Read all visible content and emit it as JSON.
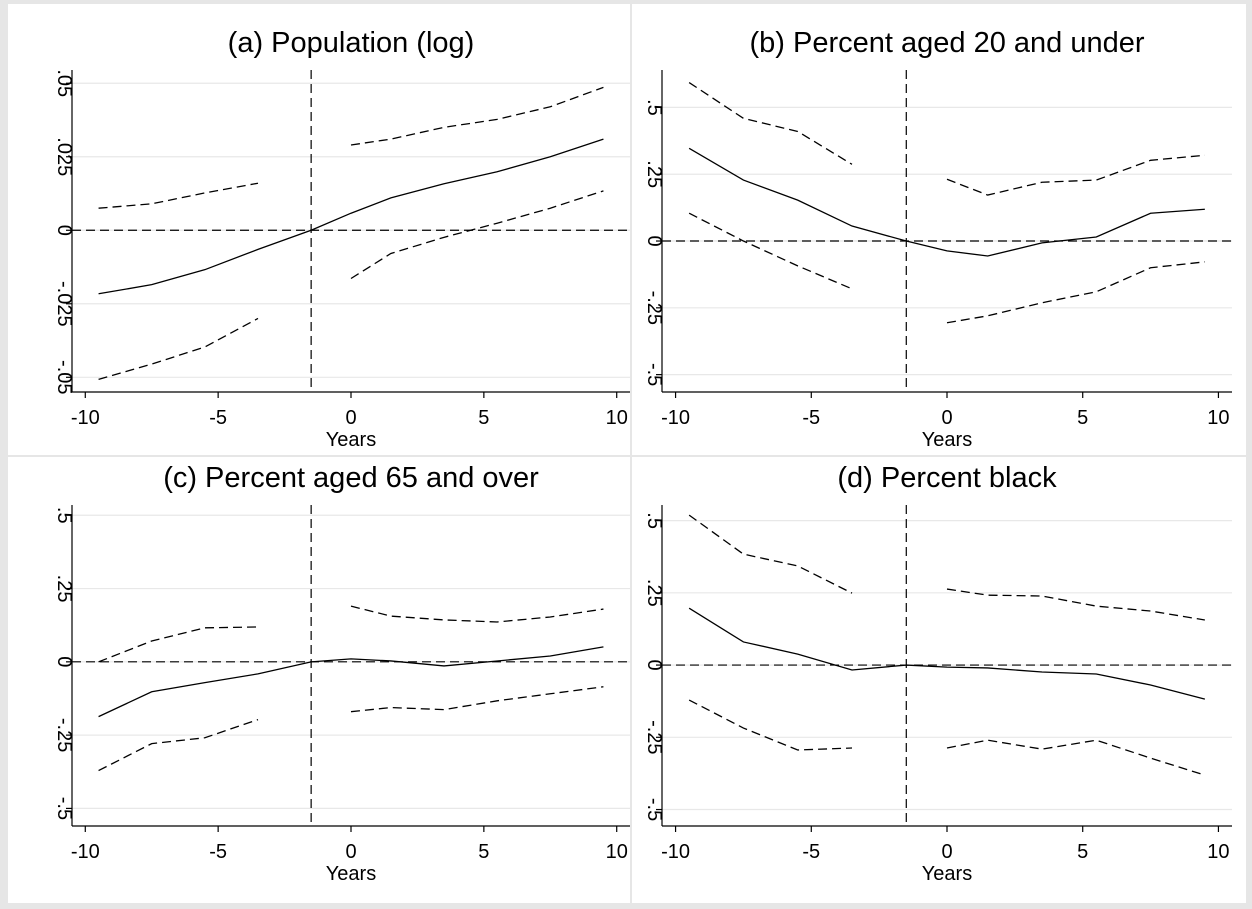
{
  "chart_data": [
    {
      "type": "line",
      "title": "(a) Population (log)",
      "xlabel": "Years",
      "x": [
        -9.5,
        -7.5,
        -5.5,
        -3.5,
        -1.5,
        0,
        1.5,
        3.5,
        5.5,
        7.5,
        9.5
      ],
      "series": [
        {
          "color": "#000000",
          "style": "solid",
          "values": [
            -0.0216,
            -0.0185,
            -0.0134,
            -0.0065,
            0,
            0.0058,
            0.011,
            0.0158,
            0.0199,
            0.025,
            0.031
          ]
        },
        {
          "color": "#000000",
          "style": "dashed",
          "values": [
            0.0075,
            0.009,
            0.0127,
            0.016,
            null,
            0.029,
            0.031,
            0.035,
            0.0377,
            0.042,
            0.0486
          ]
        },
        {
          "color": "#000000",
          "style": "dashed",
          "values": [
            -0.0507,
            -0.0455,
            -0.0397,
            -0.03,
            null,
            -0.0164,
            -0.0079,
            -0.0024,
            0.0024,
            0.0075,
            0.0134
          ]
        }
      ],
      "xlim": [
        -10.5,
        10.5
      ],
      "xticks": [
        -10,
        -5,
        0,
        5,
        10
      ],
      "ylim": [
        -0.055,
        0.0545
      ],
      "yticks": [
        {
          "value": -0.05,
          "label": "-.05"
        },
        {
          "value": -0.025,
          "label": "-.025"
        },
        0,
        {
          "value": 0.025,
          "label": ".025"
        },
        {
          "value": 0.05,
          "label": ".05"
        }
      ],
      "hline": 0,
      "vline": -1.5,
      "grid": true
    },
    {
      "type": "line",
      "title": "(b) Percent aged 20 and under",
      "xlabel": "Years",
      "x": [
        -9.5,
        -7.5,
        -5.5,
        -3.5,
        -1.5,
        0,
        1.5,
        3.5,
        5.5,
        7.5,
        9.5
      ],
      "series": [
        {
          "color": "#000000",
          "style": "solid",
          "values": [
            0.347,
            0.228,
            0.153,
            0.056,
            0,
            -0.037,
            -0.056,
            -0.007,
            0.015,
            0.104,
            0.119
          ]
        },
        {
          "color": "#000000",
          "style": "dashed",
          "values": [
            0.593,
            0.459,
            0.41,
            0.287,
            null,
            0.231,
            0.172,
            0.22,
            0.228,
            0.302,
            0.321
          ]
        },
        {
          "color": "#000000",
          "style": "dashed",
          "values": [
            0.104,
            0,
            -0.093,
            -0.179,
            null,
            -0.306,
            -0.28,
            -0.231,
            -0.19,
            -0.1,
            -0.078
          ]
        }
      ],
      "xlim": [
        -10.5,
        10.5
      ],
      "xticks": [
        -10,
        -5,
        0,
        5,
        10
      ],
      "ylim": [
        -0.565,
        0.64
      ],
      "yticks": [
        {
          "value": -0.5,
          "label": "-.5"
        },
        {
          "value": -0.25,
          "label": "-.25"
        },
        0,
        {
          "value": 0.25,
          "label": ".25"
        },
        {
          "value": 0.5,
          "label": ".5"
        }
      ],
      "hline": 0,
      "vline": -1.5,
      "grid": true
    },
    {
      "type": "line",
      "title": "(c) Percent aged 65 and over",
      "xlabel": "Years",
      "x": [
        -9.5,
        -7.5,
        -5.5,
        -3.5,
        -1.5,
        0,
        1.5,
        3.5,
        5.5,
        7.5,
        9.5
      ],
      "series": [
        {
          "color": "#000000",
          "style": "solid",
          "values": [
            -0.187,
            -0.102,
            -0.071,
            -0.041,
            0,
            0.01,
            0.003,
            -0.014,
            0.003,
            0.02,
            0.051
          ]
        },
        {
          "color": "#000000",
          "style": "dashed",
          "values": [
            0,
            0.071,
            0.116,
            0.119,
            null,
            0.19,
            0.156,
            0.143,
            0.136,
            0.153,
            0.18
          ]
        },
        {
          "color": "#000000",
          "style": "dashed",
          "values": [
            -0.371,
            -0.279,
            -0.259,
            -0.197,
            null,
            -0.17,
            -0.156,
            -0.163,
            -0.133,
            -0.109,
            -0.085
          ]
        }
      ],
      "xlim": [
        -10.5,
        10.5
      ],
      "xticks": [
        -10,
        -5,
        0,
        5,
        10
      ],
      "ylim": [
        -0.56,
        0.535
      ],
      "yticks": [
        {
          "value": -0.5,
          "label": "-.5"
        },
        {
          "value": -0.25,
          "label": "-.25"
        },
        0,
        {
          "value": 0.25,
          "label": ".25"
        },
        {
          "value": 0.5,
          "label": ".5"
        }
      ],
      "hline": 0,
      "vline": -1.5,
      "grid": true
    },
    {
      "type": "line",
      "title": "(d) Percent black",
      "xlabel": "Years",
      "x": [
        -9.5,
        -7.5,
        -5.5,
        -3.5,
        -1.5,
        0,
        1.5,
        3.5,
        5.5,
        7.5,
        9.5
      ],
      "series": [
        {
          "color": "#000000",
          "style": "solid",
          "values": [
            0.197,
            0.08,
            0.038,
            -0.017,
            0,
            -0.007,
            -0.01,
            -0.024,
            -0.031,
            -0.069,
            -0.118
          ]
        },
        {
          "color": "#000000",
          "style": "dashed",
          "values": [
            0.519,
            0.384,
            0.343,
            0.249,
            null,
            0.263,
            0.242,
            0.239,
            0.204,
            0.187,
            0.156
          ]
        },
        {
          "color": "#000000",
          "style": "dashed",
          "values": [
            -0.121,
            -0.218,
            -0.294,
            -0.287,
            null,
            -0.287,
            -0.26,
            -0.291,
            -0.26,
            -0.322,
            -0.381
          ]
        }
      ],
      "xlim": [
        -10.5,
        10.5
      ],
      "xticks": [
        -10,
        -5,
        0,
        5,
        10
      ],
      "ylim": [
        -0.557,
        0.554
      ],
      "yticks": [
        {
          "value": -0.5,
          "label": "-.5"
        },
        {
          "value": -0.25,
          "label": "-.25"
        },
        0,
        {
          "value": 0.25,
          "label": ".25"
        },
        {
          "value": 0.5,
          "label": ".5"
        }
      ],
      "hline": 0,
      "vline": -1.5,
      "grid": true
    }
  ]
}
